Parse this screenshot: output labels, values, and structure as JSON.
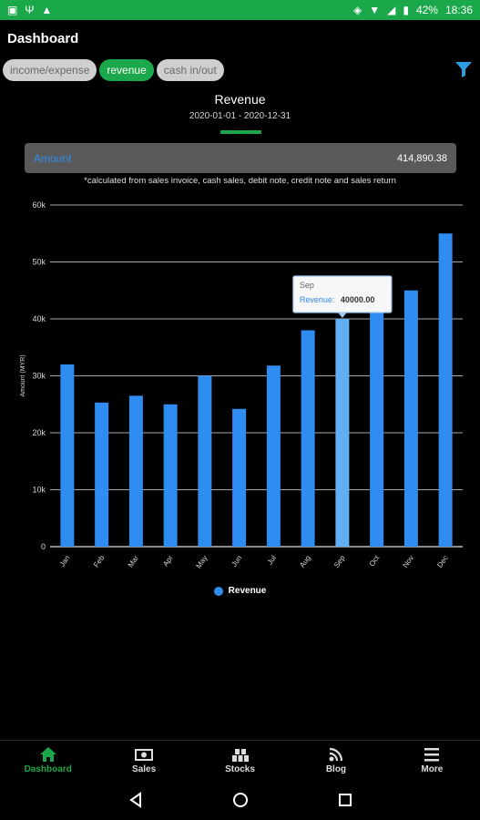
{
  "status_bar": {
    "battery": "42%",
    "time": "18:36"
  },
  "app": {
    "title": "Dashboard"
  },
  "chips": [
    {
      "label": "income/expense",
      "active": false
    },
    {
      "label": "revenue",
      "active": true
    },
    {
      "label": "cash in/out",
      "active": false
    }
  ],
  "header": {
    "title": "Revenue",
    "date_range": "2020-01-01 - 2020-12-31",
    "amount_label": "Amount",
    "amount_value": "414,890.38",
    "note": "*calculated from sales invoice, cash sales, debit note, credit note and sales return"
  },
  "chart_data": {
    "type": "bar",
    "ylabel": "Amount (MYR)",
    "ylim": [
      0,
      60000
    ],
    "yticks": [
      "0",
      "10k",
      "20k",
      "30k",
      "40k",
      "50k",
      "60k"
    ],
    "categories": [
      "Jan",
      "Feb",
      "Mar",
      "Apr",
      "May",
      "Jun",
      "Jul",
      "Aug",
      "Sep",
      "Oct",
      "Nov",
      "Dec"
    ],
    "series": [
      {
        "name": "Revenue",
        "values": [
          32000,
          25300,
          26500,
          25000,
          30000,
          24200,
          31800,
          38000,
          40000,
          41500,
          45000,
          55000
        ]
      }
    ],
    "grid": true,
    "legend": "bottom-center",
    "colors": {
      "bar": "#2f8cf0",
      "highlight": "#62aef5",
      "grid": "#e0e0e0",
      "axis_text": "#d8d8d8"
    },
    "tooltip": {
      "category": "Sep",
      "series_label": "Revenue:",
      "value": "40000.00"
    }
  },
  "bottom_nav": [
    {
      "label": "Dashboard",
      "icon": "home-icon",
      "active": true
    },
    {
      "label": "Sales",
      "icon": "money-icon",
      "active": false
    },
    {
      "label": "Stocks",
      "icon": "boxes-icon",
      "active": false
    },
    {
      "label": "Blog",
      "icon": "blog-icon",
      "active": false
    },
    {
      "label": "More",
      "icon": "menu-icon",
      "active": false
    }
  ]
}
